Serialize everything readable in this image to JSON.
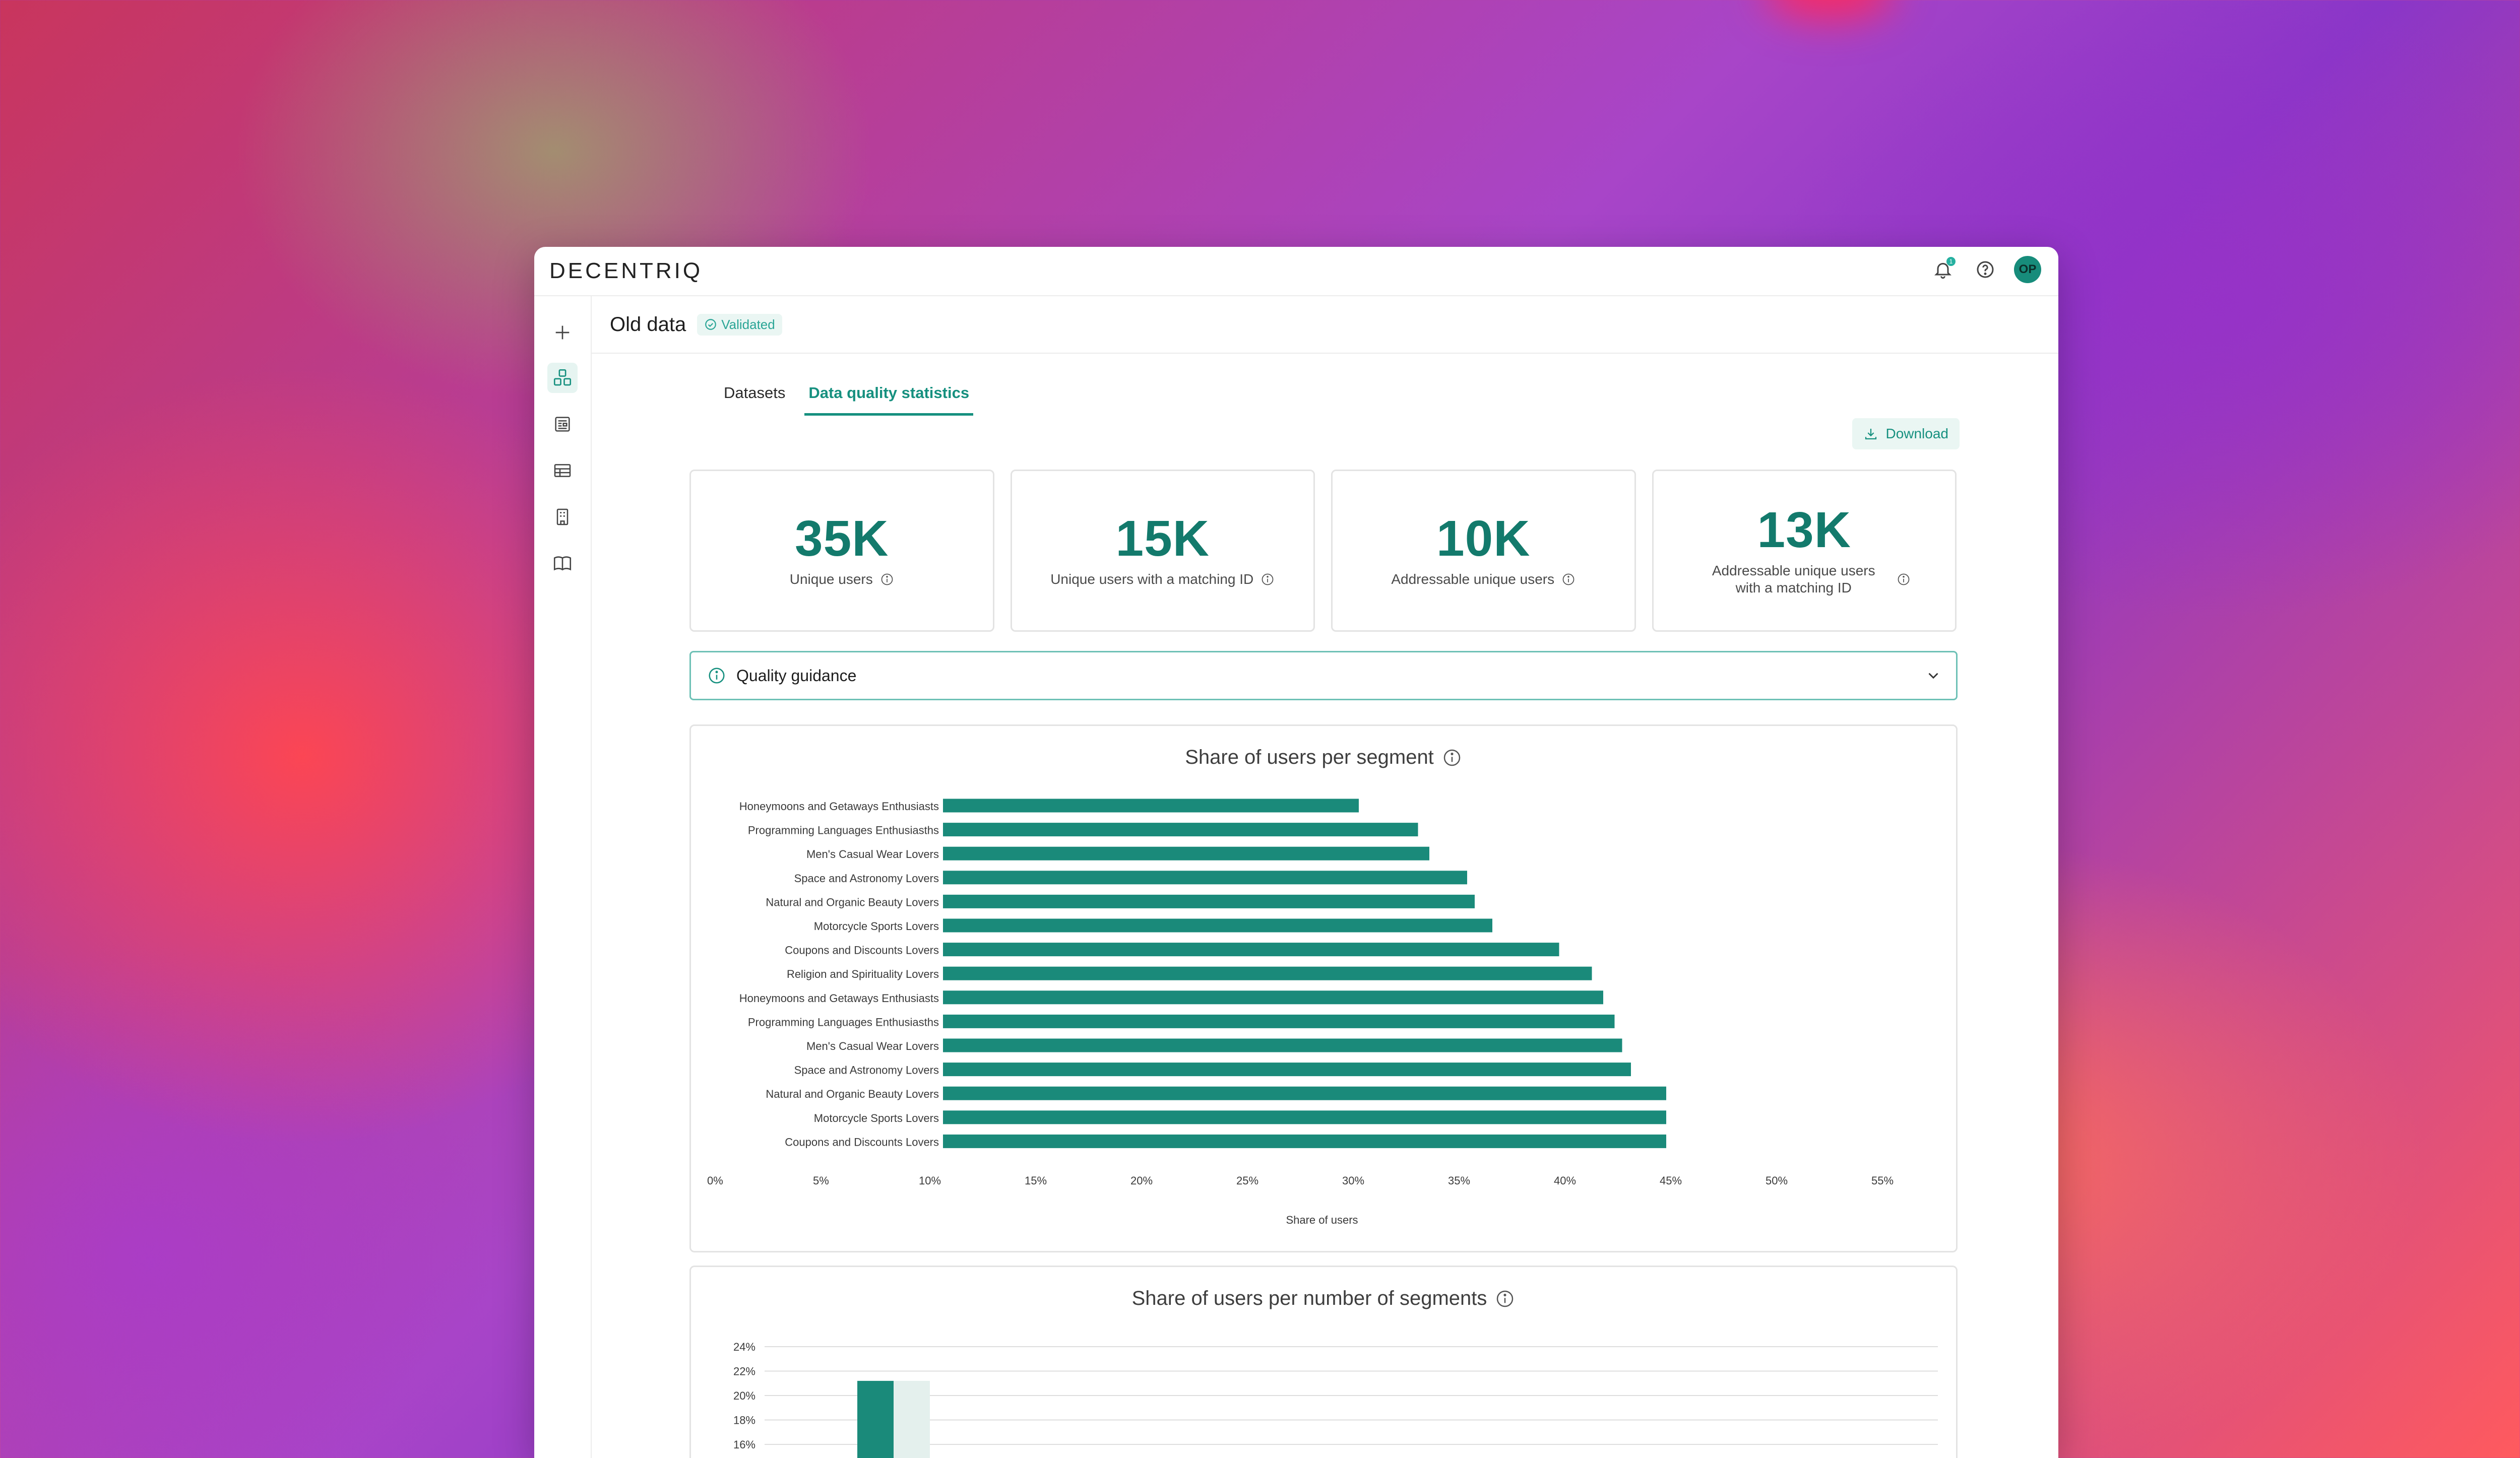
{
  "app": {
    "logo": "DECENTRIQ",
    "notification_count": "1",
    "avatar_initials": "OP"
  },
  "header": {
    "title": "Old data",
    "status": "Validated"
  },
  "tabs": [
    {
      "label": "Datasets"
    },
    {
      "label": "Data quality statistics"
    }
  ],
  "actions": {
    "download_label": "Download"
  },
  "stats": [
    {
      "value": "35K",
      "label": "Unique users"
    },
    {
      "value": "15K",
      "label": "Unique users with a matching ID"
    },
    {
      "value": "10K",
      "label": "Addressable unique users"
    },
    {
      "value": "13K",
      "label": "Addressable unique users with a matching ID"
    }
  ],
  "guidance": {
    "label": "Quality guidance"
  },
  "colors": {
    "accent": "#16907f",
    "bar": "#1a8a7a",
    "bar_light": "#e4f0ed"
  },
  "chart_data": [
    {
      "type": "bar",
      "orientation": "horizontal",
      "title": "Share of users per segment",
      "xlabel": "Share of users",
      "ylabel": "",
      "xlim": [
        0,
        57.5
      ],
      "xticks": [
        "0%",
        "5%",
        "10%",
        "15%",
        "20%",
        "25%",
        "30%",
        "35%",
        "40%",
        "45%",
        "50%",
        "55%"
      ],
      "grid": false,
      "categories": [
        "Honeymoons and Getaways Enthusiasts",
        "Programming Languages Enthusiasths",
        "Men's Casual Wear Lovers",
        "Space and Astronomy Lovers",
        "Natural and Organic Beauty Lovers",
        "Motorcycle Sports Lovers",
        "Coupons and Discounts Lovers",
        "Religion and Spirituality Lovers",
        "Honeymoons and Getaways Enthusiasts",
        "Programming Languages Enthusiasths",
        "Men's Casual Wear Lovers",
        "Space and Astronomy Lovers",
        "Natural and Organic Beauty Lovers",
        "Motorcycle Sports Lovers",
        "Coupons and Discounts Lovers"
      ],
      "values": [
        33.0,
        37.7,
        38.6,
        41.6,
        42.2,
        43.6,
        48.9,
        51.5,
        52.4,
        53.3,
        53.9,
        54.6,
        57.4,
        57.4,
        57.4
      ]
    },
    {
      "type": "bar",
      "title": "Share of users per number of segments",
      "ylim": [
        16,
        24
      ],
      "yticks": [
        "24%",
        "22%",
        "20%",
        "18%",
        "16%"
      ],
      "grid": true,
      "series": [
        {
          "values": [
            21.2
          ]
        },
        {
          "values": [
            21.2
          ]
        }
      ]
    }
  ]
}
